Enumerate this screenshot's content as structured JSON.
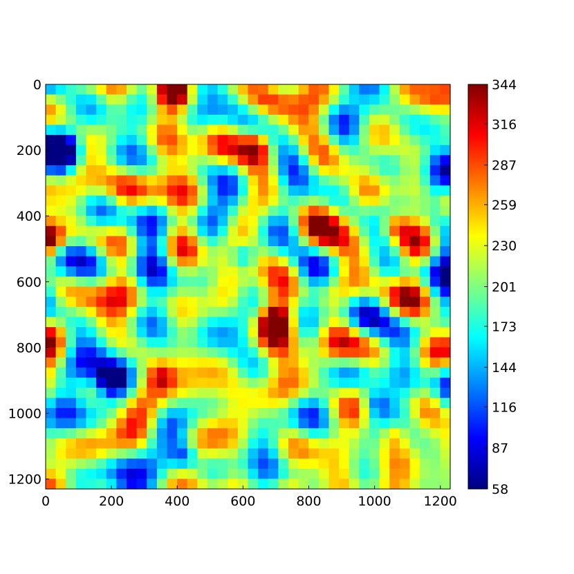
{
  "chart_data": {
    "type": "heatmap",
    "title": "",
    "xlabel": "",
    "ylabel": "",
    "x_ticks": [
      0,
      200,
      400,
      600,
      800,
      1000,
      1200
    ],
    "y_ticks": [
      0,
      200,
      400,
      600,
      800,
      1000,
      1200
    ],
    "xlim": [
      0,
      1230
    ],
    "ylim": [
      1230,
      0
    ],
    "colorbar": {
      "colormap": "jet",
      "range": [
        58,
        344
      ],
      "ticks": [
        58,
        87,
        116,
        144,
        173,
        201,
        230,
        259,
        287,
        316,
        344
      ]
    },
    "grid": false,
    "field": {
      "description_shown": "smooth random field",
      "grid_size": [
        40,
        40
      ],
      "value_min": 58,
      "value_max": 344
    },
    "hotspots": [
      {
        "x": 390,
        "y": 20,
        "value": 330
      },
      {
        "x": 640,
        "y": 190,
        "value": 310
      },
      {
        "x": 20,
        "y": 470,
        "value": 320
      },
      {
        "x": 700,
        "y": 720,
        "value": 335
      },
      {
        "x": 1060,
        "y": 430,
        "value": 330
      },
      {
        "x": 350,
        "y": 890,
        "value": 300
      },
      {
        "x": 1060,
        "y": 1060,
        "value": 310
      },
      {
        "x": 600,
        "y": 520,
        "value": 80
      },
      {
        "x": 420,
        "y": 1130,
        "value": 75
      },
      {
        "x": 1000,
        "y": 970,
        "value": 85
      },
      {
        "x": 60,
        "y": 200,
        "value": 90
      },
      {
        "x": 200,
        "y": 900,
        "value": 90
      }
    ]
  }
}
